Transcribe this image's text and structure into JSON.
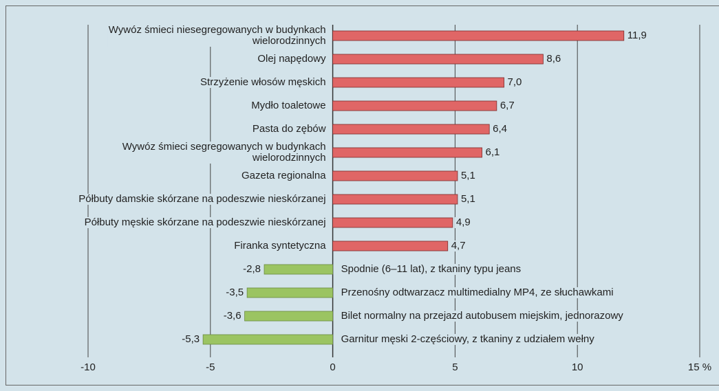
{
  "chart_data": {
    "type": "bar",
    "categories": [
      "Wywóz śmieci niesegregowanych w budynkach\nwielorodzinnych",
      "Olej napędowy",
      "Strzyżenie włosów męskich",
      "Mydło toaletowe",
      "Pasta do zębów",
      "Wywóz śmieci segregowanych w budynkach\nwielorodzinnych",
      "Gazeta regionalna",
      "Półbuty damskie skórzane na podeszwie nieskórzanej",
      "Półbuty męskie skórzane na podeszwie nieskórzanej",
      "Firanka syntetyczna",
      "Spodnie (6–11 lat), z tkaniny typu jeans",
      "Przenośny odtwarzacz multimedialny MP4, ze słuchawkami",
      "Bilet normalny na przejazd autobusem miejskim, jednorazowy",
      "Garnitur męski 2-częściowy, z tkaniny z udziałem wełny"
    ],
    "values": [
      11.9,
      8.6,
      7.0,
      6.7,
      6.4,
      6.1,
      5.1,
      5.1,
      4.9,
      4.7,
      -2.8,
      -3.5,
      -3.6,
      -5.3
    ],
    "value_labels": [
      "11,9",
      "8,6",
      "7,0",
      "6,7",
      "6,4",
      "6,1",
      "5,1",
      "5,1",
      "4,9",
      "4,7",
      "-2,8",
      "-3,5",
      "-3,6",
      "-5,3"
    ],
    "positive_color": "#e06666",
    "negative_color": "#9bc462",
    "xlim": [
      -10,
      15
    ],
    "xticks": [
      -10,
      -5,
      0,
      5,
      10,
      {
        "value": 15,
        "label": "15 %"
      }
    ],
    "grid": true
  }
}
